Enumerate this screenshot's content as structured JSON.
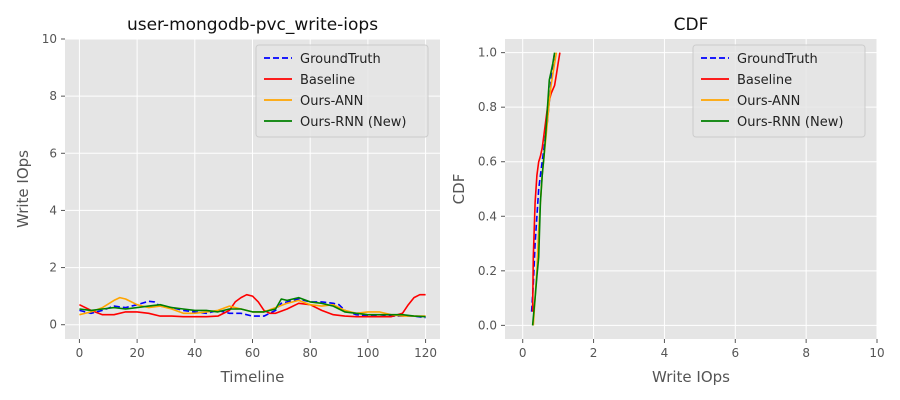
{
  "chart_data": [
    {
      "type": "line",
      "title": "user-mongodb-pvc_write-iops",
      "xlabel": "Timeline",
      "ylabel": "Write IOps",
      "xlim": [
        -5,
        125
      ],
      "ylim": [
        -0.5,
        10
      ],
      "xticks": [
        0,
        20,
        40,
        60,
        80,
        100,
        120
      ],
      "yticks": [
        0,
        2,
        4,
        6,
        8,
        10
      ],
      "grid": true,
      "legend": "top-right",
      "series": [
        {
          "name": "GroundTruth",
          "color": "#0000ff",
          "dash": true,
          "x": [
            0,
            4,
            8,
            12,
            16,
            20,
            24,
            26,
            28,
            32,
            36,
            40,
            44,
            48,
            52,
            56,
            60,
            64,
            68,
            70,
            72,
            76,
            80,
            84,
            88,
            90,
            92,
            96,
            100,
            104,
            108,
            112,
            116,
            120
          ],
          "y": [
            0.5,
            0.4,
            0.5,
            0.65,
            0.6,
            0.7,
            0.82,
            0.8,
            0.65,
            0.6,
            0.5,
            0.45,
            0.4,
            0.5,
            0.4,
            0.4,
            0.3,
            0.3,
            0.5,
            0.75,
            0.8,
            0.9,
            0.8,
            0.8,
            0.75,
            0.7,
            0.5,
            0.35,
            0.3,
            0.35,
            0.3,
            0.3,
            0.3,
            0.25
          ]
        },
        {
          "name": "Baseline",
          "color": "#ff0000",
          "dash": false,
          "x": [
            0,
            4,
            8,
            12,
            16,
            20,
            24,
            28,
            32,
            36,
            40,
            44,
            48,
            52,
            54,
            56,
            58,
            60,
            62,
            64,
            66,
            68,
            72,
            76,
            80,
            84,
            88,
            92,
            96,
            100,
            104,
            108,
            112,
            114,
            116,
            118,
            120
          ],
          "y": [
            0.7,
            0.5,
            0.35,
            0.35,
            0.45,
            0.45,
            0.4,
            0.3,
            0.3,
            0.28,
            0.28,
            0.28,
            0.3,
            0.5,
            0.8,
            0.95,
            1.05,
            1.0,
            0.8,
            0.5,
            0.4,
            0.4,
            0.55,
            0.75,
            0.7,
            0.5,
            0.35,
            0.3,
            0.28,
            0.28,
            0.28,
            0.28,
            0.4,
            0.7,
            0.95,
            1.05,
            1.05
          ]
        },
        {
          "name": "Ours-ANN",
          "color": "#ffa500",
          "dash": false,
          "x": [
            0,
            4,
            8,
            12,
            14,
            16,
            20,
            24,
            28,
            32,
            36,
            40,
            44,
            48,
            52,
            56,
            60,
            64,
            68,
            72,
            76,
            80,
            84,
            88,
            92,
            96,
            100,
            104,
            108,
            112,
            116,
            120
          ],
          "y": [
            0.35,
            0.45,
            0.6,
            0.85,
            0.95,
            0.9,
            0.7,
            0.6,
            0.65,
            0.55,
            0.4,
            0.4,
            0.45,
            0.5,
            0.65,
            0.55,
            0.45,
            0.45,
            0.6,
            0.75,
            0.85,
            0.7,
            0.65,
            0.7,
            0.5,
            0.4,
            0.45,
            0.45,
            0.35,
            0.3,
            0.3,
            0.3
          ]
        },
        {
          "name": "Ours-RNN (New)",
          "color": "#008000",
          "dash": false,
          "x": [
            0,
            4,
            8,
            12,
            16,
            20,
            24,
            28,
            32,
            36,
            40,
            44,
            48,
            52,
            56,
            60,
            64,
            68,
            70,
            72,
            76,
            80,
            84,
            88,
            92,
            96,
            100,
            104,
            108,
            112,
            116,
            120
          ],
          "y": [
            0.55,
            0.5,
            0.55,
            0.6,
            0.55,
            0.6,
            0.65,
            0.7,
            0.6,
            0.55,
            0.5,
            0.5,
            0.45,
            0.55,
            0.55,
            0.45,
            0.45,
            0.55,
            0.9,
            0.85,
            0.95,
            0.8,
            0.75,
            0.65,
            0.45,
            0.4,
            0.35,
            0.35,
            0.35,
            0.35,
            0.3,
            0.28
          ]
        }
      ]
    },
    {
      "type": "line",
      "title": "CDF",
      "xlabel": "Write IOps",
      "ylabel": "CDF",
      "xlim": [
        -0.5,
        10
      ],
      "ylim": [
        -0.05,
        1.05
      ],
      "xticks": [
        0,
        2,
        4,
        6,
        8,
        10
      ],
      "yticks": [
        0.0,
        0.2,
        0.4,
        0.6,
        0.8,
        1.0
      ],
      "grid": true,
      "legend": "top-right",
      "series": [
        {
          "name": "GroundTruth",
          "color": "#0000ff",
          "dash": true,
          "x": [
            0.25,
            0.3,
            0.35,
            0.4,
            0.45,
            0.5,
            0.55,
            0.6,
            0.65,
            0.7,
            0.75,
            0.8,
            0.85,
            0.9
          ],
          "y": [
            0.05,
            0.15,
            0.3,
            0.4,
            0.5,
            0.55,
            0.6,
            0.65,
            0.7,
            0.75,
            0.82,
            0.9,
            0.95,
            1.0
          ]
        },
        {
          "name": "Baseline",
          "color": "#ff0000",
          "dash": false,
          "x": [
            0.28,
            0.3,
            0.35,
            0.4,
            0.45,
            0.5,
            0.55,
            0.6,
            0.7,
            0.8,
            0.9,
            0.95,
            1.0,
            1.05
          ],
          "y": [
            0.05,
            0.25,
            0.45,
            0.55,
            0.6,
            0.62,
            0.65,
            0.7,
            0.8,
            0.85,
            0.88,
            0.92,
            0.96,
            1.0
          ]
        },
        {
          "name": "Ours-ANN",
          "color": "#ffa500",
          "dash": false,
          "x": [
            0.3,
            0.35,
            0.4,
            0.45,
            0.5,
            0.55,
            0.6,
            0.65,
            0.7,
            0.75,
            0.8,
            0.85,
            0.9,
            0.95
          ],
          "y": [
            0.0,
            0.1,
            0.2,
            0.35,
            0.45,
            0.55,
            0.62,
            0.68,
            0.75,
            0.82,
            0.88,
            0.92,
            0.96,
            1.0
          ]
        },
        {
          "name": "Ours-RNN (New)",
          "color": "#008000",
          "dash": false,
          "x": [
            0.28,
            0.35,
            0.4,
            0.45,
            0.5,
            0.55,
            0.6,
            0.65,
            0.7,
            0.75,
            0.8,
            0.85,
            0.9
          ],
          "y": [
            0.0,
            0.1,
            0.18,
            0.25,
            0.45,
            0.55,
            0.62,
            0.7,
            0.8,
            0.9,
            0.93,
            0.96,
            1.0
          ]
        }
      ]
    }
  ]
}
